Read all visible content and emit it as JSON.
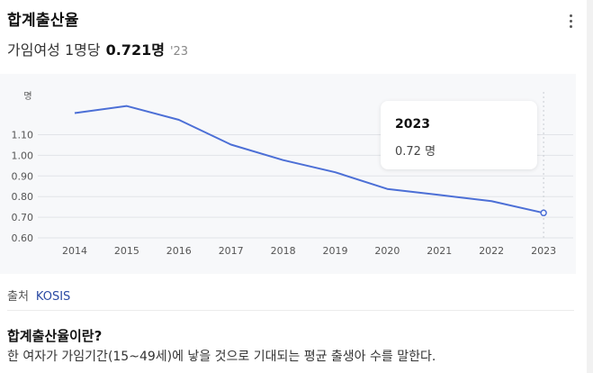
{
  "card": {
    "title": "합계출산율",
    "subtitle_label": "가임여성 1명당",
    "value_text": "0.721명",
    "year_tag": "'23",
    "more_icon": "more-vert-icon"
  },
  "tooltip": {
    "year": "2023",
    "value": "0.72 명"
  },
  "source": {
    "label": "출처",
    "link": "KOSIS"
  },
  "description": {
    "title": "합계출산율이란?",
    "text": "한 여자가 가임기간(15~49세)에 낳을 것으로 기대되는 평균 출생아 수를 말한다."
  },
  "colors": {
    "line": "#4c6fd6",
    "grid": "#e2e4e8",
    "background": "#f7f8fa"
  },
  "chart_data": {
    "type": "line",
    "title": "합계출산율",
    "ylabel": "명",
    "xlabel": "",
    "ylim": [
      0.6,
      1.16
    ],
    "yticks": [
      "0.60",
      "0.70",
      "0.80",
      "0.90",
      "1.00",
      "1.10"
    ],
    "categories": [
      "2014",
      "2015",
      "2016",
      "2017",
      "2018",
      "2019",
      "2020",
      "2021",
      "2022",
      "2023"
    ],
    "series": [
      {
        "name": "합계출산율",
        "values": [
          1.205,
          1.239,
          1.172,
          1.052,
          0.977,
          0.918,
          0.837,
          0.808,
          0.778,
          0.721
        ]
      }
    ],
    "highlight_index": 9
  }
}
